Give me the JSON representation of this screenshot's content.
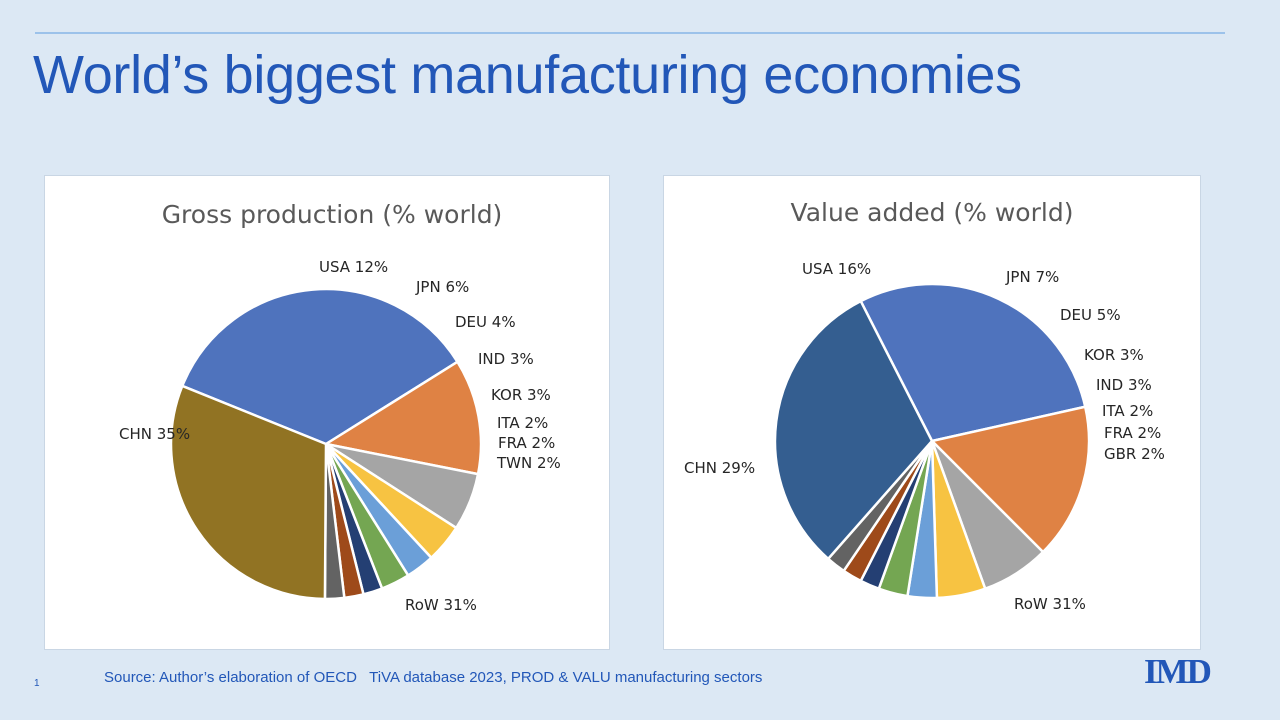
{
  "slide": {
    "title": "World’s biggest manufacturing economies",
    "source": "Source: Author’s elaboration of OECD   TiVA database 2023, PROD & VALU manufacturing sectors",
    "page_number": "1",
    "logo": "IMD"
  },
  "colors": {
    "background": "#dce8f4",
    "title": "#2257b8"
  },
  "chart_data": [
    {
      "type": "pie",
      "title": "Gross production  (% world)",
      "unit": "%",
      "slices": [
        {
          "label": "CHN 35%",
          "value": 35,
          "color": "#4f73bd"
        },
        {
          "label": "USA 12%",
          "value": 12,
          "color": "#df8244"
        },
        {
          "label": "JPN 6%",
          "value": 6,
          "color": "#a5a5a5"
        },
        {
          "label": "DEU 4%",
          "value": 4,
          "color": "#f7c342"
        },
        {
          "label": "IND 3%",
          "value": 3,
          "color": "#6b9fd8"
        },
        {
          "label": "KOR 3%",
          "value": 3,
          "color": "#74a652"
        },
        {
          "label": "ITA 2%",
          "value": 2,
          "color": "#243f73"
        },
        {
          "label": "FRA 2%",
          "value": 2,
          "color": "#9e4a1a"
        },
        {
          "label": "TWN 2%",
          "value": 2,
          "color": "#636363"
        },
        {
          "label": "RoW 31%",
          "value": 31,
          "color": "#917323"
        }
      ]
    },
    {
      "type": "pie",
      "title": "Value added (% world)",
      "unit": "%",
      "slices": [
        {
          "label": "CHN 29%",
          "value": 29,
          "color": "#4f73bd"
        },
        {
          "label": "USA 16%",
          "value": 16,
          "color": "#df8244"
        },
        {
          "label": "JPN 7%",
          "value": 7,
          "color": "#a5a5a5"
        },
        {
          "label": "DEU 5%",
          "value": 5,
          "color": "#f7c342"
        },
        {
          "label": "KOR 3%",
          "value": 3,
          "color": "#6b9fd8"
        },
        {
          "label": "IND 3%",
          "value": 3,
          "color": "#74a652"
        },
        {
          "label": "ITA 2%",
          "value": 2,
          "color": "#243f73"
        },
        {
          "label": "FRA 2%",
          "value": 2,
          "color": "#9e4a1a"
        },
        {
          "label": "GBR 2%",
          "value": 2,
          "color": "#636363"
        },
        {
          "label": "RoW 31%",
          "value": 31,
          "color": "#345e90"
        }
      ]
    }
  ]
}
